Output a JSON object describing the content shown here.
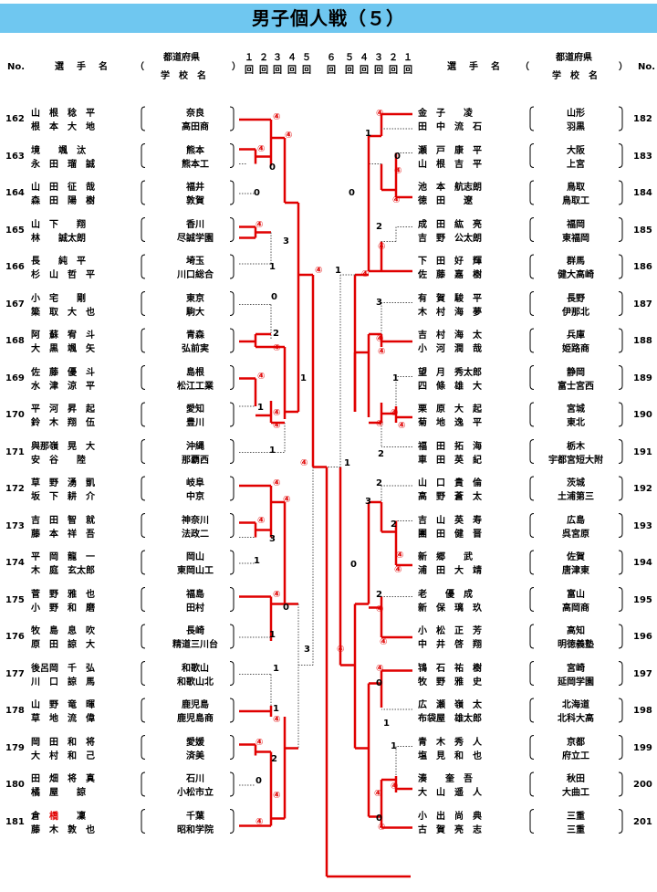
{
  "page": {
    "title": "男子個人戦（５）"
  },
  "header": {
    "no": "No.",
    "name": "選　手　名",
    "open_paren": "（",
    "close_paren": "）",
    "pref": "都道府県",
    "school": "学　校　名",
    "rounds_left": [
      "１",
      "２",
      "３",
      "４",
      "５",
      "",
      "６"
    ],
    "rounds_right": [
      "５",
      "４",
      "３",
      "２",
      "１"
    ],
    "round_unit": "回"
  },
  "left_entries": [
    {
      "no": "162",
      "p1": "山　根　稔　平",
      "p2": "根　本　大　地",
      "pref": "奈良",
      "school": "高田商"
    },
    {
      "no": "163",
      "p1": "境　　颯　汰",
      "p2": "永　田　瑠　誠",
      "pref": "熊本",
      "school": "熊本工"
    },
    {
      "no": "164",
      "p1": "山　田　征　哉",
      "p2": "森　田　陽　樹",
      "pref": "福井",
      "school": "敦賀"
    },
    {
      "no": "165",
      "p1": "山　下　　翔",
      "p2": "林　　誠太朗",
      "pref": "香川",
      "school": "尽誠学園"
    },
    {
      "no": "166",
      "p1": "長　　純　平",
      "p2": "杉　山　哲　平",
      "pref": "埼玉",
      "school": "川口総合"
    },
    {
      "no": "167",
      "p1": "小　宅　　剛",
      "p2": "簗　取　大　也",
      "pref": "東京",
      "school": "駒大"
    },
    {
      "no": "168",
      "p1": "阿　蘇　宥　斗",
      "p2": "大　黒　颯　矢",
      "pref": "青森",
      "school": "弘前実"
    },
    {
      "no": "169",
      "p1": "佐　藤　優　斗",
      "p2": "水　津　涼　平",
      "pref": "島根",
      "school": "松江工業"
    },
    {
      "no": "170",
      "p1": "平　河　昇　起",
      "p2": "鈴　木　翔　伍",
      "pref": "愛知",
      "school": "豊川"
    },
    {
      "no": "171",
      "p1": "與那嶺　晃　大",
      "p2": "安　谷　　陸",
      "pref": "沖縄",
      "school": "那覇西"
    },
    {
      "no": "172",
      "p1": "草　野　湧　凱",
      "p2": "坂　下　耕　介",
      "pref": "岐阜",
      "school": "中京"
    },
    {
      "no": "173",
      "p1": "吉　田　智　就",
      "p2": "藤　本　祥　吾",
      "pref": "神奈川",
      "school": "法政二"
    },
    {
      "no": "174",
      "p1": "平　岡　龍　一",
      "p2": "木　庭　玄太郎",
      "pref": "岡山",
      "school": "東岡山工"
    },
    {
      "no": "175",
      "p1": "菅　野　雅　也",
      "p2": "小　野　和　磨",
      "pref": "福島",
      "school": "田村"
    },
    {
      "no": "176",
      "p1": "牧　島　息　吹",
      "p2": "原　田　諒　大",
      "pref": "長崎",
      "school": "精道三川台"
    },
    {
      "no": "177",
      "p1": "後呂岡　千　弘",
      "p2": "川　口　諒　馬",
      "pref": "和歌山",
      "school": "和歌山北"
    },
    {
      "no": "178",
      "p1": "山　野　竜　暉",
      "p2": "草　地　流　偉",
      "pref": "鹿児島",
      "school": "鹿児島商"
    },
    {
      "no": "179",
      "p1": "岡　田　和　将",
      "p2": "大　村　和　己",
      "pref": "愛媛",
      "school": "済美"
    },
    {
      "no": "180",
      "p1": "田　畑　将　真",
      "p2": "橘　屋　　諒",
      "pref": "石川",
      "school": "小松市立"
    },
    {
      "no": "181",
      "p1": "倉　橋　　凜",
      "p2": "藤　木　敦　也",
      "pref": "千葉",
      "school": "昭和学院"
    }
  ],
  "right_entries": [
    {
      "no": "182",
      "p1": "金　子　　凌",
      "p2": "田　中　流　石",
      "pref": "山形",
      "school": "羽黒"
    },
    {
      "no": "183",
      "p1": "瀬　戸　康　平",
      "p2": "山　根　吉　平",
      "pref": "大阪",
      "school": "上宮"
    },
    {
      "no": "184",
      "p1": "池　本　航志朗",
      "p2": "徳　田　　遼",
      "pref": "鳥取",
      "school": "鳥取工"
    },
    {
      "no": "185",
      "p1": "成　田　紘　亮",
      "p2": "吉　野　公太朗",
      "pref": "福岡",
      "school": "東福岡"
    },
    {
      "no": "186",
      "p1": "下　田　好　輝",
      "p2": "佐　藤　嘉　樹",
      "pref": "群馬",
      "school": "健大高崎"
    },
    {
      "no": "187",
      "p1": "有　賀　駿　平",
      "p2": "木　村　海　夢",
      "pref": "長野",
      "school": "伊那北"
    },
    {
      "no": "188",
      "p1": "吉　村　海　太",
      "p2": "小　河　潤　哉",
      "pref": "兵庫",
      "school": "姫路商"
    },
    {
      "no": "189",
      "p1": "望　月　秀太郎",
      "p2": "四　條　雄　大",
      "pref": "静岡",
      "school": "富士宮西"
    },
    {
      "no": "190",
      "p1": "栗　原　大　起",
      "p2": "菊　地　逸　平",
      "pref": "宮城",
      "school": "東北"
    },
    {
      "no": "191",
      "p1": "福　田　拓　海",
      "p2": "車　田　英　紀",
      "pref": "栃木",
      "school": "宇都宮短大附"
    },
    {
      "no": "192",
      "p1": "山　口　貴　倫",
      "p2": "高　野　蒼　太",
      "pref": "茨城",
      "school": "土浦第三"
    },
    {
      "no": "193",
      "p1": "吉　山　英　寿",
      "p2": "團　田　健　晋",
      "pref": "広島",
      "school": "呉宮原"
    },
    {
      "no": "194",
      "p1": "新　郷　　武",
      "p2": "浦　田　大　靖",
      "pref": "佐賀",
      "school": "唐津東"
    },
    {
      "no": "195",
      "p1": "老　　優　成",
      "p2": "新　保　璃　玖",
      "pref": "富山",
      "school": "高岡商"
    },
    {
      "no": "196",
      "p1": "小　松　正　芳",
      "p2": "中　井　啓　翔",
      "pref": "高知",
      "school": "明徳義塾"
    },
    {
      "no": "197",
      "p1": "鴇　石　祐　樹",
      "p2": "牧　野　雅　史",
      "pref": "宮崎",
      "school": "延岡学園"
    },
    {
      "no": "198",
      "p1": "広　瀬　嶺　太",
      "p2": "布袋屋　雄太郎",
      "pref": "北海道",
      "school": "北科大高"
    },
    {
      "no": "199",
      "p1": "青　木　秀　人",
      "p2": "塩　見　和　也",
      "pref": "京都",
      "school": "府立工"
    },
    {
      "no": "200",
      "p1": "湊　　奎　吾",
      "p2": "大　山　遥　人",
      "pref": "秋田",
      "school": "大曲工"
    },
    {
      "no": "201",
      "p1": "小　出　尚　典",
      "p2": "古　賀　亮　志",
      "pref": "三重",
      "school": "三重"
    }
  ],
  "scores": {
    "win": "④",
    "left": {
      "s162": "④",
      "s162b": "④",
      "s163a": "④",
      "s163b": "0",
      "s164": "0",
      "s165a": "④",
      "s165b": "3",
      "s166": "1",
      "s167": "0",
      "s168a": "2",
      "s168b": "④",
      "s169a": "④",
      "s169b": "1",
      "s170a": "1",
      "s170b": "④",
      "s170c": "④",
      "s171": "1",
      "s172a": "④",
      "s172b": "④",
      "s173a": "④",
      "s173b": "3",
      "s174": "1",
      "s175a": "④",
      "s175b": "0",
      "s176": "1",
      "s177": "1",
      "s178a": "1",
      "s178b": "④",
      "s179a": "④",
      "s179b": "2",
      "s180a": "0",
      "s180b": "④",
      "s181": "④",
      "sem1": "④",
      "sem2": "3",
      "qf1": "④",
      "qf2": "④",
      "top": "④",
      "final": "④"
    },
    "right": {
      "s182": "④",
      "s182b": "1",
      "s183a": "0",
      "s183b": "④",
      "s184": "④",
      "s184b": "0",
      "s185a": "2",
      "s185b": "④",
      "s186": "④",
      "s187a": "3",
      "s187b": "④",
      "s188": "④",
      "s189a": "1",
      "s189b": "④",
      "s190a": "④",
      "s190b": "④",
      "s191": "2",
      "s192a": "2",
      "s192b": "3",
      "s193a": "2",
      "s193b": "④",
      "s194": "④",
      "s194b": "0",
      "s195a": "2",
      "s195b": "④",
      "s196": "④",
      "s197a": "④",
      "s197b": "0",
      "s198": "1",
      "s199a": "1",
      "s199b": "④",
      "s200a": "④",
      "s200b": "0",
      "s201": "④",
      "sem1": "1",
      "sem2": "④",
      "qf1": "④",
      "qf2": "④",
      "top": "1",
      "final": "1"
    }
  }
}
